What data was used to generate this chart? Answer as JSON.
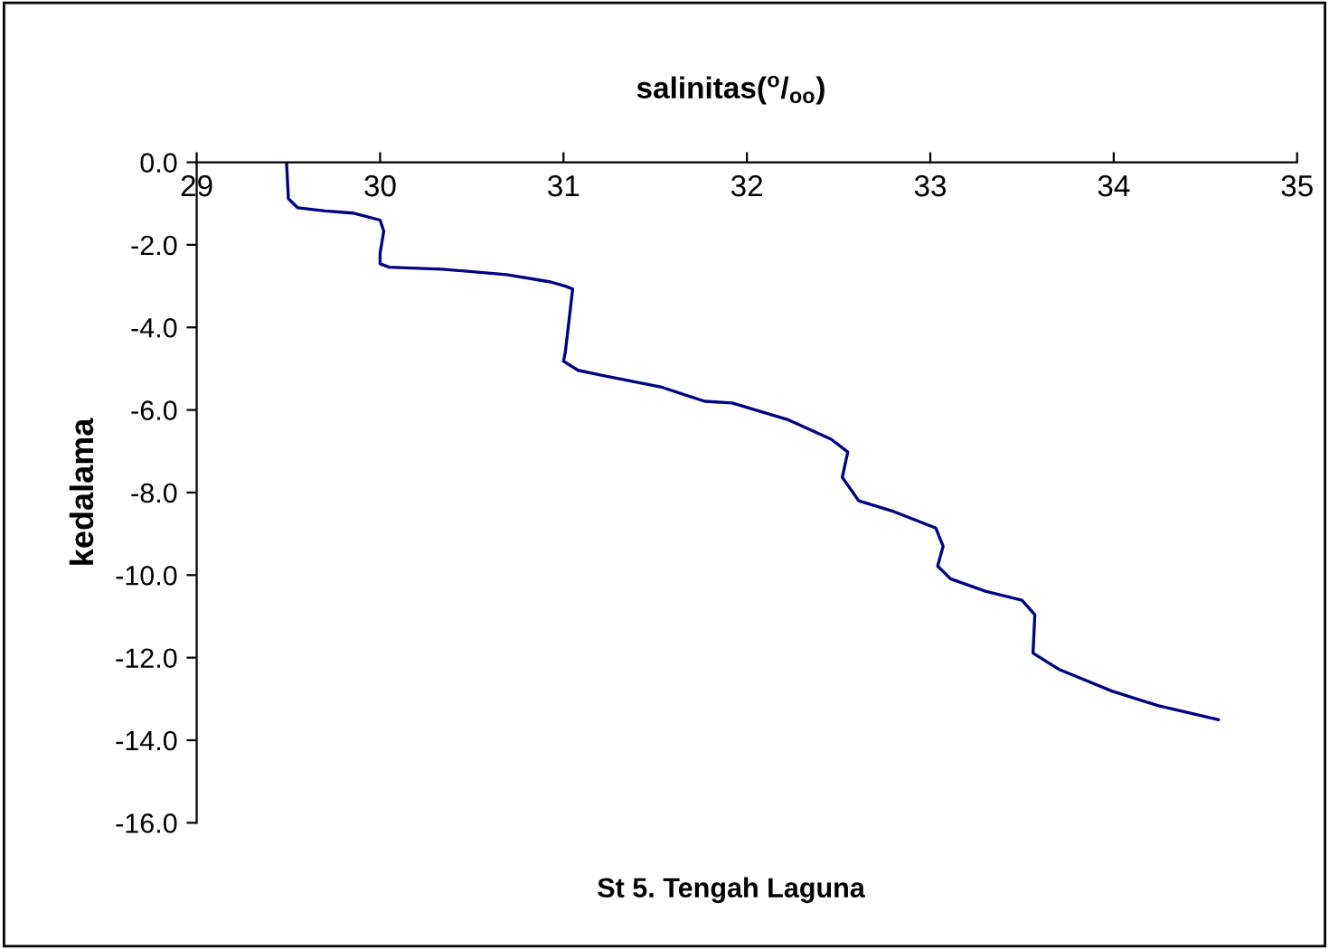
{
  "chart_data": {
    "type": "line",
    "title": "salinitas($^{o}$/$_{oo}$)",
    "ylabel": "kedalama",
    "annotations": [
      "St 5. Tengah Laguna"
    ],
    "xlim": [
      29,
      35
    ],
    "xticks": [
      29,
      30,
      31,
      32,
      33,
      34,
      35
    ],
    "ylim": [
      -16,
      0
    ],
    "yticks": [
      {
        "value": 0,
        "label": "0.0"
      },
      {
        "value": -2,
        "label": "-2.0"
      },
      {
        "value": -4,
        "label": "-4.0"
      },
      {
        "value": -6,
        "label": "-6.0"
      },
      {
        "value": -8,
        "label": "-8.0"
      },
      {
        "value": -10,
        "label": "-10.0"
      },
      {
        "value": -12,
        "label": "-12.0"
      },
      {
        "value": -14,
        "label": "-14.0"
      },
      {
        "value": -16,
        "label": "-16.0"
      }
    ],
    "grid": false,
    "series": [
      {
        "color": "#000080",
        "x": [
          29.49,
          29.5,
          29.55,
          29.7,
          29.85,
          30.0,
          30.02,
          30.0,
          30.0,
          30.05,
          30.34,
          30.69,
          30.93,
          31.01,
          31.05,
          31.01,
          31.0,
          31.08,
          31.23,
          31.53,
          31.77,
          31.92,
          32.22,
          32.46,
          32.55,
          32.52,
          32.61,
          32.8,
          33.03,
          33.07,
          33.04,
          33.11,
          33.3,
          33.5,
          33.57,
          33.56,
          33.7,
          33.99,
          34.24,
          34.57
        ],
        "values": [
          0,
          -0.88,
          -1.1,
          -1.18,
          -1.23,
          -1.4,
          -1.67,
          -2.2,
          -2.46,
          -2.54,
          -2.59,
          -2.72,
          -2.9,
          -3.0,
          -3.07,
          -4.6,
          -4.82,
          -5.04,
          -5.18,
          -5.44,
          -5.79,
          -5.83,
          -6.23,
          -6.71,
          -7.02,
          -7.63,
          -8.2,
          -8.46,
          -8.86,
          -9.3,
          -9.78,
          -10.09,
          -10.39,
          -10.61,
          -10.96,
          -11.89,
          -12.28,
          -12.81,
          -13.16,
          -13.5
        ]
      }
    ]
  }
}
